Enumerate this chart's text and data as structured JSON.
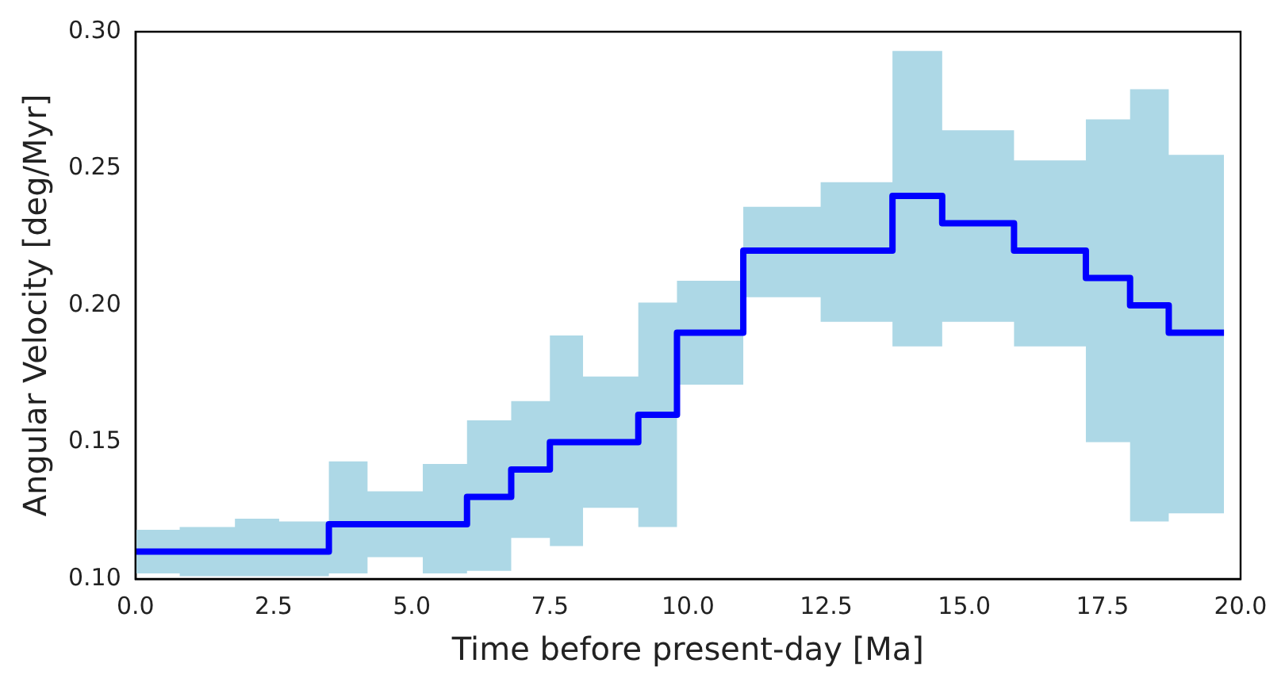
{
  "chart_data": {
    "type": "step",
    "xlabel": "Time before present-day [Ma]",
    "ylabel": "Angular Velocity [deg/Myr]",
    "x": [
      0,
      0.8,
      1.8,
      2.6,
      3.5,
      4.2,
      5.2,
      6.0,
      6.8,
      7.5,
      8.1,
      9.1,
      9.8,
      11.0,
      12.4,
      13.7,
      14.6,
      15.9,
      17.2,
      18.0,
      18.7,
      19.7
    ],
    "series": [
      {
        "color": "#0000ff",
        "values": [
          0.11,
          0.11,
          0.11,
          0.11,
          0.12,
          0.12,
          0.12,
          0.13,
          0.14,
          0.15,
          0.15,
          0.16,
          0.19,
          0.22,
          0.22,
          0.24,
          0.23,
          0.22,
          0.21,
          0.2,
          0.19,
          0.19
        ],
        "lower": [
          0.102,
          0.101,
          0.101,
          0.101,
          0.102,
          0.108,
          0.102,
          0.103,
          0.115,
          0.112,
          0.126,
          0.119,
          0.171,
          0.203,
          0.194,
          0.185,
          0.194,
          0.185,
          0.15,
          0.121,
          0.124,
          0.124
        ],
        "upper": [
          0.118,
          0.119,
          0.122,
          0.121,
          0.143,
          0.132,
          0.142,
          0.158,
          0.165,
          0.189,
          0.174,
          0.201,
          0.209,
          0.236,
          0.245,
          0.293,
          0.264,
          0.253,
          0.268,
          0.279,
          0.255,
          0.255
        ]
      }
    ],
    "xlim": [
      0,
      20
    ],
    "ylim": [
      0.1,
      0.3
    ],
    "xticks": [
      {
        "value": 0,
        "label": "0.0"
      },
      {
        "value": 2.5,
        "label": "2.5"
      },
      {
        "value": 5,
        "label": "5.0"
      },
      {
        "value": 7.5,
        "label": "7.5"
      },
      {
        "value": 10,
        "label": "10.0"
      },
      {
        "value": 12.5,
        "label": "12.5"
      },
      {
        "value": 15,
        "label": "15.0"
      },
      {
        "value": 17.5,
        "label": "17.5"
      },
      {
        "value": 20,
        "label": "20.0"
      }
    ],
    "yticks": [
      {
        "value": 0.1,
        "label": "0.10"
      },
      {
        "value": 0.15,
        "label": "0.15"
      },
      {
        "value": 0.2,
        "label": "0.20"
      },
      {
        "value": 0.25,
        "label": "0.25"
      },
      {
        "value": 0.3,
        "label": "0.30"
      }
    ],
    "grid": false,
    "legend": false
  }
}
